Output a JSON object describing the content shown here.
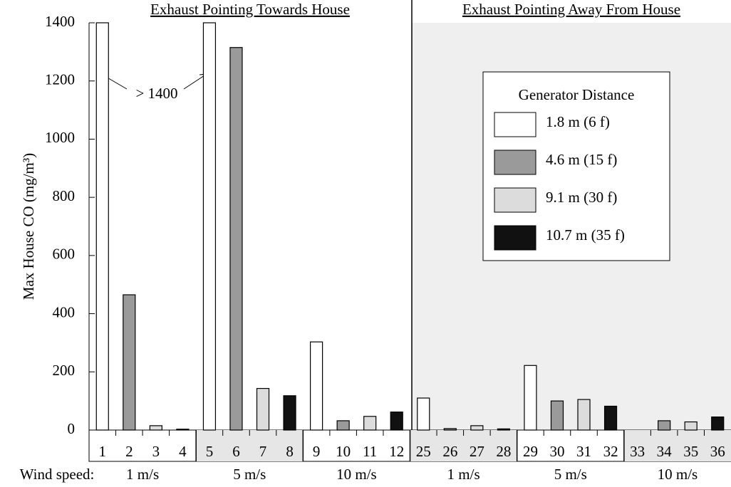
{
  "chart_data": {
    "type": "bar",
    "title_left": "Exhaust Pointing Towards House",
    "title_right": "Exhaust Pointing Away From House",
    "ylabel": "Max House CO (mg/m³)",
    "annotation": "> 1400",
    "legend_title": "Generator Distance",
    "categories": [
      "1",
      "2",
      "3",
      "4",
      "5",
      "6",
      "7",
      "8",
      "9",
      "10",
      "11",
      "12",
      "25",
      "26",
      "27",
      "28",
      "29",
      "30",
      "31",
      "32",
      "33",
      "34",
      "35",
      "36"
    ],
    "series": [
      {
        "name": "1.8 m (6 f)",
        "color": "#ffffff",
        "values": [
          1400,
          null,
          null,
          null,
          1400,
          null,
          null,
          null,
          303,
          null,
          null,
          null,
          110,
          null,
          null,
          null,
          222,
          null,
          null,
          null,
          0,
          null,
          null,
          null
        ]
      },
      {
        "name": "4.6 m (15 f)",
        "color": "#9a9a9a",
        "values": [
          null,
          465,
          null,
          null,
          null,
          1315,
          null,
          null,
          null,
          32,
          null,
          null,
          null,
          5,
          null,
          null,
          null,
          100,
          null,
          null,
          null,
          32,
          null,
          null
        ]
      },
      {
        "name": "9.1 m (30 f)",
        "color": "#dcdcdc",
        "values": [
          null,
          null,
          15,
          null,
          null,
          null,
          143,
          null,
          null,
          null,
          47,
          null,
          null,
          null,
          15,
          null,
          null,
          null,
          105,
          null,
          null,
          null,
          28,
          null
        ]
      },
      {
        "name": "10.7 m (35 f)",
        "color": "#111111",
        "values": [
          null,
          null,
          null,
          3,
          null,
          null,
          null,
          118,
          null,
          null,
          null,
          62,
          null,
          null,
          null,
          4,
          null,
          null,
          null,
          82,
          null,
          null,
          null,
          45
        ]
      }
    ],
    "wind_label": "Wind speed:",
    "wind_speeds": [
      "1 m/s",
      "5 m/s",
      "10 m/s",
      "1 m/s",
      "5 m/s",
      "10 m/s"
    ],
    "ylim": [
      0,
      1400
    ],
    "yticks": [
      0,
      200,
      400,
      600,
      800,
      1000,
      1200,
      1400
    ]
  }
}
